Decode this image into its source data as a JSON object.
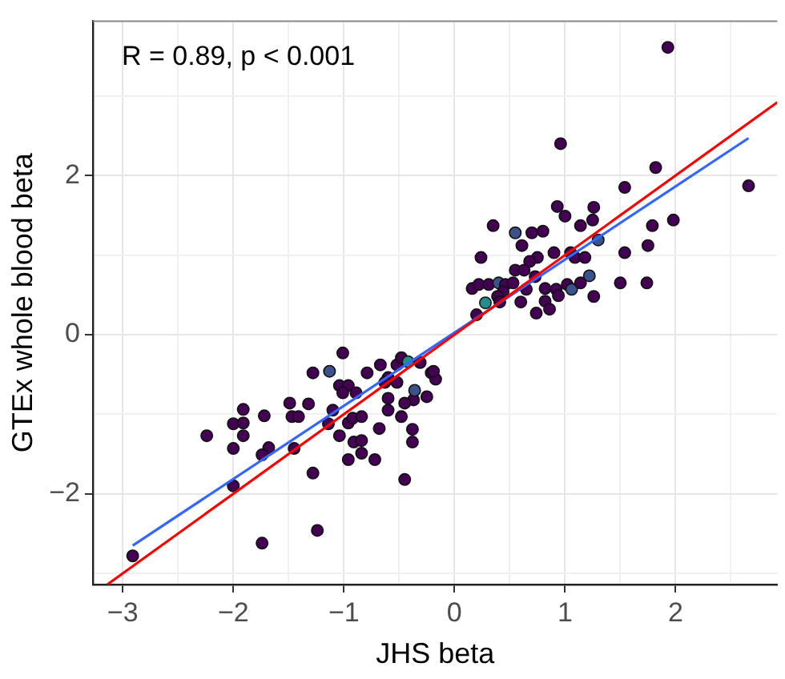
{
  "chart_data": {
    "type": "scatter",
    "xlabel": "JHS beta",
    "ylabel": "GTEx whole blood beta",
    "annotations": [
      "R = 0.89, p < 0.001"
    ],
    "xlim": [
      -3.27,
      2.92
    ],
    "ylim": [
      -3.14,
      3.94
    ],
    "xticks": [
      -3,
      {
        "value": -2.5,
        "label": null
      },
      -2,
      {
        "value": -1.5,
        "label": null
      },
      -1,
      {
        "value": -0.5,
        "label": null
      },
      0,
      {
        "value": 0.5,
        "label": null
      },
      1,
      {
        "value": 1.5,
        "label": null
      },
      2,
      {
        "value": 2.5,
        "label": null
      }
    ],
    "yticks": [
      {
        "value": -3,
        "label": null
      },
      {
        "value": -2,
        "label": "−2"
      },
      {
        "value": -1,
        "label": null
      },
      0,
      {
        "value": 1,
        "label": null
      },
      2,
      {
        "value": 3,
        "label": null
      }
    ],
    "grid": true,
    "legend": false,
    "series": [
      {
        "marker": "circle",
        "x": [
          -1.01,
          -1.28,
          -1.13,
          -1.49,
          -1.32,
          -1.47,
          -1.41,
          -1.91,
          -2.0,
          -1.91,
          -1.72,
          -2.24,
          -1.91,
          -2.0,
          -1.68,
          -1.74,
          -1.45,
          -2.0,
          -1.28,
          -1.24,
          -1.74,
          -2.91,
          -1.14,
          -1.04,
          -0.96,
          -0.92,
          -0.91,
          -0.84,
          -0.84,
          -0.96,
          -0.72,
          -0.68,
          -0.45,
          -0.38,
          -0.38,
          -1.04,
          -0.96,
          -1.01,
          -0.89,
          -0.79,
          -0.67,
          -0.6,
          -0.52,
          -0.48,
          -0.42,
          -0.31,
          -0.21,
          -0.17,
          -0.25,
          -0.37,
          -0.36,
          -0.6,
          -0.6,
          -0.48,
          -0.45,
          -0.63,
          -0.52,
          -0.84,
          -1.1,
          1.93,
          0.96,
          1.82,
          2.66,
          1.54,
          1.98,
          0.93,
          1.0,
          1.14,
          1.26,
          1.25,
          0.35,
          0.55,
          0.7,
          0.8,
          0.61,
          1.79,
          1.75,
          1.3,
          1.54,
          0.24,
          0.9,
          1.05,
          0.75,
          0.68,
          1.09,
          1.18,
          0.55,
          0.63,
          0.73,
          1.22,
          1.02,
          1.06,
          1.14,
          1.5,
          1.74,
          1.26,
          0.82,
          0.92,
          0.94,
          0.82,
          0.86,
          0.74,
          0.6,
          0.16,
          0.22,
          0.31,
          0.4,
          0.46,
          0.53,
          0.44,
          0.39,
          0.41,
          0.28,
          0.2,
          0.65,
          -0.19
        ],
        "values": [
          -0.23,
          -0.48,
          -0.46,
          -0.86,
          -0.87,
          -1.03,
          -1.03,
          -0.94,
          -1.12,
          -1.11,
          -1.02,
          -1.27,
          -1.27,
          -1.43,
          -1.42,
          -1.51,
          -1.43,
          -1.9,
          -1.74,
          -2.46,
          -2.62,
          -2.78,
          -1.12,
          -1.27,
          -1.11,
          -1.05,
          -1.35,
          -1.33,
          -1.49,
          -1.57,
          -1.57,
          -1.18,
          -1.82,
          -1.19,
          -1.35,
          -0.64,
          -0.64,
          -0.73,
          -0.73,
          -0.48,
          -0.38,
          -0.54,
          -0.38,
          -0.29,
          -0.34,
          -0.35,
          -0.48,
          -0.56,
          -0.78,
          -0.82,
          -0.7,
          -0.8,
          -0.95,
          -1.03,
          -0.86,
          -0.6,
          -0.6,
          -1.03,
          -0.95,
          3.61,
          2.4,
          2.1,
          1.87,
          1.85,
          1.44,
          1.61,
          1.49,
          1.37,
          1.6,
          1.44,
          1.37,
          1.28,
          1.28,
          1.3,
          1.12,
          1.37,
          1.12,
          1.19,
          1.03,
          0.97,
          1.03,
          1.03,
          0.97,
          0.92,
          0.97,
          0.97,
          0.81,
          0.81,
          0.73,
          0.74,
          0.63,
          0.57,
          0.65,
          0.65,
          0.65,
          0.48,
          0.58,
          0.57,
          0.49,
          0.42,
          0.32,
          0.27,
          0.41,
          0.58,
          0.63,
          0.63,
          0.65,
          0.63,
          0.65,
          0.54,
          0.48,
          0.41,
          0.4,
          0.25,
          0.57,
          -0.46
        ],
        "colors": [
          "#440154",
          "#440154",
          "#3b528b",
          "#440154",
          "#440154",
          "#440154",
          "#440154",
          "#440154",
          "#440154",
          "#440154",
          "#440154",
          "#440154",
          "#440154",
          "#440154",
          "#440154",
          "#440154",
          "#440154",
          "#440154",
          "#440154",
          "#440154",
          "#440154",
          "#440154",
          "#440154",
          "#440154",
          "#440154",
          "#440154",
          "#440154",
          "#440154",
          "#440154",
          "#440154",
          "#440154",
          "#440154",
          "#440154",
          "#440154",
          "#440154",
          "#440154",
          "#440154",
          "#440154",
          "#440154",
          "#440154",
          "#440154",
          "#440154",
          "#440154",
          "#440154",
          "#21908d",
          "#440154",
          "#440154",
          "#440154",
          "#440154",
          "#440154",
          "#3b528b",
          "#440154",
          "#440154",
          "#440154",
          "#440154",
          "#440154",
          "#440154",
          "#440154",
          "#440154",
          "#440154",
          "#440154",
          "#440154",
          "#440154",
          "#440154",
          "#440154",
          "#440154",
          "#440154",
          "#440154",
          "#440154",
          "#440154",
          "#440154",
          "#3b528b",
          "#440154",
          "#440154",
          "#440154",
          "#440154",
          "#440154",
          "#3b528b",
          "#440154",
          "#440154",
          "#440154",
          "#440154",
          "#440154",
          "#440154",
          "#440154",
          "#440154",
          "#440154",
          "#440154",
          "#440154",
          "#3b528b",
          "#440154",
          "#3b528b",
          "#440154",
          "#440154",
          "#440154",
          "#440154",
          "#440154",
          "#440154",
          "#440154",
          "#440154",
          "#440154",
          "#440154",
          "#440154",
          "#440154",
          "#440154",
          "#440154",
          "#3b528b",
          "#440154",
          "#440154",
          "#440154",
          "#440154",
          "#440154",
          "#21908d",
          "#440154",
          "#440154",
          "#440154"
        ]
      },
      {
        "type": "line",
        "marker": "none",
        "color": "#3366ff",
        "x": [
          -2.91,
          2.66
        ],
        "values": [
          -2.65,
          2.47
        ]
      },
      {
        "type": "line",
        "marker": "none",
        "color": "#ff0000",
        "x": [
          -3.14,
          2.92
        ],
        "values": [
          -3.14,
          2.92
        ]
      }
    ]
  }
}
